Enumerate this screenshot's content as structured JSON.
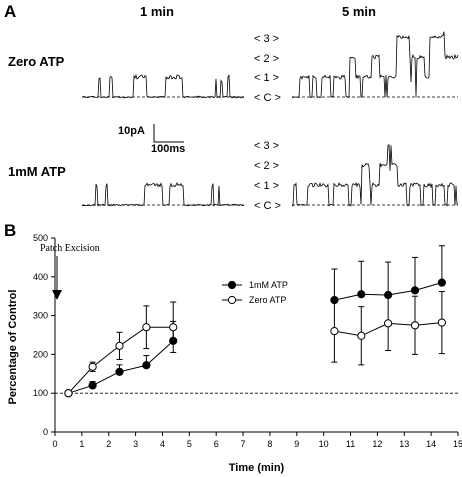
{
  "panel_a": {
    "label": "A",
    "col_1min": "1 min",
    "col_5min": "5 min",
    "row_zero": "Zero ATP",
    "row_atp": "1mM ATP",
    "levels": [
      "< 3 >",
      "< 2 >",
      "< 1 >",
      "< C >"
    ],
    "scale_current": "10pA",
    "scale_time": "100ms"
  },
  "panel_b": {
    "label": "B",
    "annotation": "Patch Excision"
  },
  "chart_data": {
    "type": "scatter",
    "xlabel": "Time (min)",
    "ylabel": "Percentage of Control",
    "xlim": [
      0,
      15
    ],
    "ylim": [
      0,
      500
    ],
    "xticks": [
      "0",
      "1",
      "2",
      "3",
      "4",
      "5",
      "6",
      "7",
      "8",
      "9",
      "10",
      "11",
      "12",
      "13",
      "14",
      "15"
    ],
    "yticks": [
      "0",
      "100",
      "200",
      "300",
      "400",
      "500"
    ],
    "reference_line": 100,
    "legend_position": "top-center",
    "series": [
      {
        "name": "1mM ATP",
        "marker": "filled-circle",
        "segments": [
          {
            "x": [
              0.5,
              1.4,
              2.4,
              3.4,
              4.4
            ],
            "y": [
              100,
              120,
              155,
              172,
              235
            ],
            "err": [
              0,
              10,
              18,
              25,
              50
            ]
          },
          {
            "x": [
              10.4,
              11.4,
              12.4,
              13.4,
              14.4
            ],
            "y": [
              340,
              355,
              353,
              365,
              385
            ],
            "err": [
              80,
              85,
              85,
              85,
              95
            ]
          }
        ]
      },
      {
        "name": "Zero ATP",
        "marker": "open-circle",
        "segments": [
          {
            "x": [
              0.5,
              1.4,
              2.4,
              3.4,
              4.4
            ],
            "y": [
              100,
              168,
              222,
              270,
              270
            ],
            "err": [
              0,
              12,
              35,
              55,
              65
            ]
          },
          {
            "x": [
              10.4,
              11.4,
              12.4,
              13.4,
              14.4
            ],
            "y": [
              260,
              248,
              280,
              275,
              282
            ],
            "err": [
              80,
              75,
              70,
              75,
              80
            ]
          }
        ]
      }
    ]
  }
}
